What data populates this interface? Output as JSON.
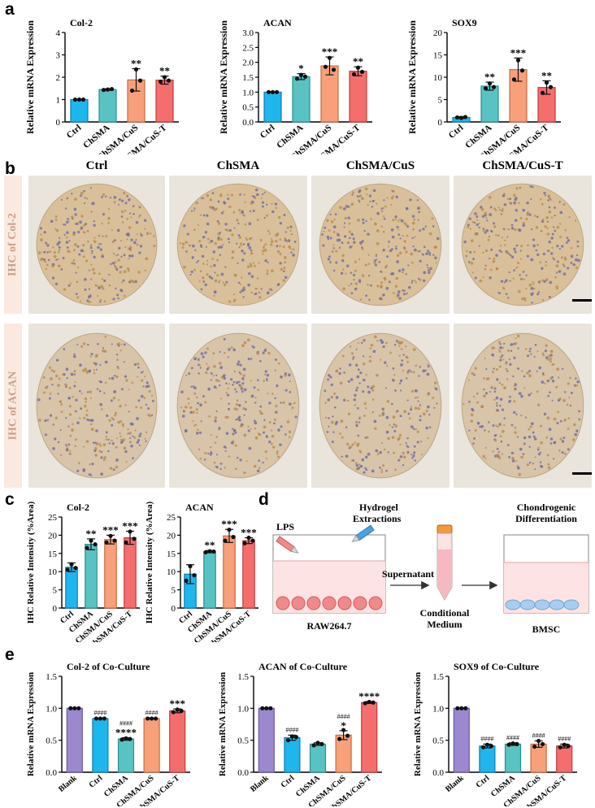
{
  "panels": {
    "a": "a",
    "b": "b",
    "c": "c",
    "d": "d",
    "e": "e"
  },
  "colors": {
    "ctrl": "#1fb6ee",
    "chsma": "#59c3c3",
    "cus": "#f7a07a",
    "cust": "#f56e6e",
    "blank": "#9b88cf"
  },
  "panel_a": [
    {
      "title": "Col-2",
      "ylabel": "Relative mRNA Expression",
      "categories": [
        "Ctrl",
        "ChSMA",
        "ChSMA/CuS",
        "ChSMA/CuS-T"
      ],
      "values": [
        1.0,
        1.45,
        1.88,
        1.87
      ],
      "err": [
        0.01,
        0.03,
        0.5,
        0.18
      ],
      "points": [
        [
          1,
          1,
          1
        ],
        [
          1.43,
          1.45,
          1.47
        ],
        [
          1.4,
          2.35,
          1.85
        ],
        [
          1.8,
          2.0,
          1.85
        ]
      ],
      "sig": [
        "",
        "",
        "**",
        "**"
      ],
      "yticks": [
        "0",
        "1",
        "2",
        "3",
        "4"
      ],
      "ylim": [
        0,
        4
      ]
    },
    {
      "title": "ACAN",
      "ylabel": "Relative mRNA Expression",
      "categories": [
        "Ctrl",
        "ChSMA",
        "ChSMA/CuS",
        "ChSMA/CuS-T"
      ],
      "values": [
        1.0,
        1.52,
        1.88,
        1.7
      ],
      "err": [
        0.01,
        0.1,
        0.3,
        0.15
      ],
      "points": [
        [
          1,
          1,
          1
        ],
        [
          1.45,
          1.58,
          1.52
        ],
        [
          1.85,
          2.15,
          1.75
        ],
        [
          1.6,
          1.82,
          1.68
        ]
      ],
      "sig": [
        "",
        "*",
        "***",
        "**"
      ],
      "yticks": [
        "0.0",
        "0.5",
        "1.0",
        "1.5",
        "2.0",
        "2.5",
        "3.0"
      ],
      "ylim": [
        0,
        3
      ]
    },
    {
      "title": "SOX9",
      "ylabel": "Relative mRNA Expression",
      "categories": [
        "Ctrl",
        "ChSMA",
        "ChSMA/CuS",
        "ChSMA/CuS-T"
      ],
      "values": [
        1.0,
        8.0,
        11.7,
        7.7
      ],
      "err": [
        0.2,
        0.9,
        2.6,
        1.5
      ],
      "points": [
        [
          1,
          0.9,
          1.1
        ],
        [
          7.5,
          8.6,
          7.8
        ],
        [
          9.5,
          13.8,
          11.5
        ],
        [
          6.5,
          8.8,
          7.8
        ]
      ],
      "sig": [
        "",
        "**",
        "***",
        "**"
      ],
      "yticks": [
        "0",
        "5",
        "10",
        "15",
        "20"
      ],
      "ylim": [
        0,
        20
      ]
    }
  ],
  "panel_b": {
    "columns": [
      "Ctrl",
      "ChSMA",
      "ChSMA/CuS",
      "ChSMA/CuS-T"
    ],
    "rows": [
      "IHC of Col-2",
      "IHC of ACAN"
    ]
  },
  "panel_c": [
    {
      "title": "Col-2",
      "ylabel": "IHC Relative Intensity (%Area)",
      "categories": [
        "Ctrl",
        "ChSMA",
        "ChSMA/CuS",
        "ChSMA/CuS-T"
      ],
      "values": [
        11.2,
        17.5,
        18.8,
        19.3
      ],
      "err": [
        1.2,
        1.5,
        1.2,
        1.8
      ],
      "points": [
        [
          10.5,
          12,
          11
        ],
        [
          16.5,
          18.5,
          17.5
        ],
        [
          18,
          19.8,
          18.5
        ],
        [
          18,
          21,
          19
        ]
      ],
      "sig": [
        "",
        "**",
        "***",
        "***"
      ],
      "yticks": [
        "0",
        "5",
        "10",
        "15",
        "20",
        "25"
      ],
      "ylim": [
        0,
        25
      ]
    },
    {
      "title": "ACAN",
      "ylabel": "IHC Relative Intensity (%Area)",
      "categories": [
        "Ctrl",
        "ChSMA",
        "ChSMA/CuS",
        "ChSMA/CuS-T"
      ],
      "values": [
        9.3,
        15.5,
        19.8,
        18.5
      ],
      "err": [
        2.6,
        0.3,
        1.8,
        0.8
      ],
      "points": [
        [
          7.5,
          11.5,
          9
        ],
        [
          15.3,
          15.6,
          15.5
        ],
        [
          18.5,
          21.5,
          19.5
        ],
        [
          17.8,
          19.3,
          18.5
        ]
      ],
      "sig": [
        "",
        "**",
        "***",
        "***"
      ],
      "yticks": [
        "0",
        "5",
        "10",
        "15",
        "20",
        "25"
      ],
      "ylim": [
        0,
        25
      ]
    }
  ],
  "panel_d": {
    "lps": "LPS",
    "hydrogel": "Hydrogel",
    "extractions": "Extractions",
    "supernatant": "Supernatant",
    "raw": "RAW264.7",
    "conditional": "Conditional",
    "medium": "Medium",
    "chondrogenic": "Chondrogenic",
    "differentiation": "Differentiation",
    "bmsc": "BMSC"
  },
  "panel_e": [
    {
      "title": "Col-2 of Co-Culture",
      "ylabel": "Relative mRNA Expression",
      "categories": [
        "Blank",
        "Ctrl",
        "ChSMA",
        "ChSMA/CuS",
        "ChSMA/CuS-T"
      ],
      "values": [
        1.0,
        0.84,
        0.52,
        0.84,
        0.96
      ],
      "err": [
        0.005,
        0.005,
        0.02,
        0.005,
        0.03
      ],
      "points": [
        [
          1,
          1,
          1
        ],
        [
          0.84,
          0.84,
          0.84
        ],
        [
          0.51,
          0.53,
          0.52
        ],
        [
          0.84,
          0.84,
          0.84
        ],
        [
          0.94,
          0.98,
          0.96
        ]
      ],
      "sig": [
        "",
        "",
        "****",
        "",
        "***"
      ],
      "hash": [
        "",
        "####",
        "####",
        "####",
        ""
      ],
      "yticks": [
        "0.0",
        "0.5",
        "1.0",
        "1.5"
      ],
      "ylim": [
        0,
        1.5
      ]
    },
    {
      "title": "ACAN of Co-Culture",
      "ylabel": "Relative mRNA Expression",
      "categories": [
        "Blank",
        "Ctrl",
        "ChSMA",
        "ChSMA/CuS",
        "ChSMA/CuS-T"
      ],
      "values": [
        1.0,
        0.54,
        0.44,
        0.58,
        1.09
      ],
      "err": [
        0.005,
        0.04,
        0.02,
        0.07,
        0.015
      ],
      "points": [
        [
          1,
          1,
          1
        ],
        [
          0.5,
          0.56,
          0.55
        ],
        [
          0.42,
          0.46,
          0.44
        ],
        [
          0.52,
          0.66,
          0.57
        ],
        [
          1.08,
          1.1,
          1.09
        ]
      ],
      "sig": [
        "",
        "",
        "",
        "*",
        "****"
      ],
      "hash": [
        "",
        "####",
        "",
        "####",
        ""
      ],
      "yticks": [
        "0.0",
        "0.5",
        "1.0",
        "1.5"
      ],
      "ylim": [
        0,
        1.5
      ]
    },
    {
      "title": "SOX9 of Co-Culture",
      "ylabel": "Relative mRNA Expression",
      "categories": [
        "Blank",
        "Ctrl",
        "ChSMA",
        "ChSMA/CuS",
        "ChSMA/CuS-T"
      ],
      "values": [
        1.0,
        0.41,
        0.44,
        0.44,
        0.41
      ],
      "err": [
        0.005,
        0.03,
        0.02,
        0.05,
        0.03
      ],
      "points": [
        [
          1,
          1,
          1
        ],
        [
          0.39,
          0.43,
          0.41
        ],
        [
          0.43,
          0.45,
          0.44
        ],
        [
          0.4,
          0.49,
          0.44
        ],
        [
          0.39,
          0.43,
          0.41
        ]
      ],
      "sig": [
        "",
        "",
        "",
        "",
        ""
      ],
      "hash": [
        "",
        "####",
        "####",
        "####",
        "####"
      ],
      "yticks": [
        "0.0",
        "0.5",
        "1.0",
        "1.5"
      ],
      "ylim": [
        0,
        1.5
      ]
    }
  ]
}
